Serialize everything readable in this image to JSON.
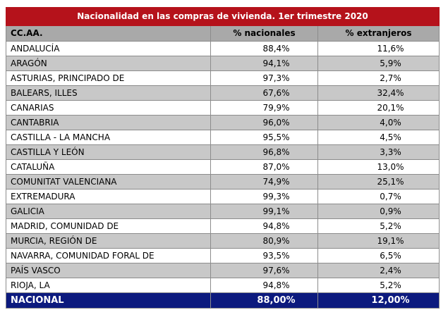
{
  "title": "Nacionalidad en las compras de vivienda. 1er trimestre 2020",
  "columns": {
    "region": "CC.AA.",
    "nationals": "% nacionales",
    "foreigners": "% extranjeros"
  },
  "rows": [
    {
      "region": "ANDALUCÍA",
      "nationals": "88,4%",
      "foreigners": "11,6%"
    },
    {
      "region": "ARAGÓN",
      "nationals": "94,1%",
      "foreigners": "5,9%"
    },
    {
      "region": "ASTURIAS, PRINCIPADO DE",
      "nationals": "97,3%",
      "foreigners": "2,7%"
    },
    {
      "region": "BALEARS, ILLES",
      "nationals": "67,6%",
      "foreigners": "32,4%"
    },
    {
      "region": "CANARIAS",
      "nationals": "79,9%",
      "foreigners": "20,1%"
    },
    {
      "region": "CANTABRIA",
      "nationals": "96,0%",
      "foreigners": "4,0%"
    },
    {
      "region": "CASTILLA - LA MANCHA",
      "nationals": "95,5%",
      "foreigners": "4,5%"
    },
    {
      "region": "CASTILLA Y LEÓN",
      "nationals": "96,8%",
      "foreigners": "3,3%"
    },
    {
      "region": "CATALUÑA",
      "nationals": "87,0%",
      "foreigners": "13,0%"
    },
    {
      "region": "COMUNITAT VALENCIANA",
      "nationals": "74,9%",
      "foreigners": "25,1%"
    },
    {
      "region": "EXTREMADURA",
      "nationals": "99,3%",
      "foreigners": "0,7%"
    },
    {
      "region": "GALICIA",
      "nationals": "99,1%",
      "foreigners": "0,9%"
    },
    {
      "region": "MADRID, COMUNIDAD DE",
      "nationals": "94,8%",
      "foreigners": "5,2%"
    },
    {
      "region": "MURCIA, REGIÓN DE",
      "nationals": "80,9%",
      "foreigners": "19,1%"
    },
    {
      "region": "NAVARRA, COMUNIDAD FORAL DE",
      "nationals": "93,5%",
      "foreigners": "6,5%"
    },
    {
      "region": "PAÍS VASCO",
      "nationals": "97,6%",
      "foreigners": "2,4%"
    },
    {
      "region": "RIOJA, LA",
      "nationals": "94,8%",
      "foreigners": "5,2%"
    }
  ],
  "total": {
    "region": "NACIONAL",
    "nationals": "88,00%",
    "foreigners": "12,00%"
  },
  "colors": {
    "title_bg": "#b5121b",
    "header_bg": "#a9a9a9",
    "alt_row_bg": "#c8c8c8",
    "total_bg": "#0c1a7e"
  }
}
